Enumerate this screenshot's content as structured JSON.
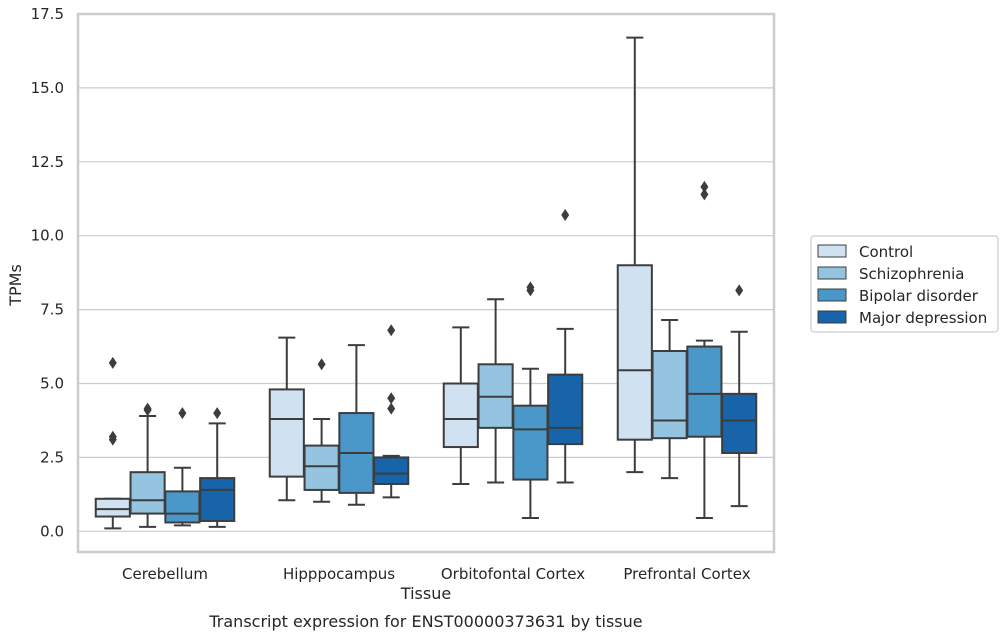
{
  "chart_data": {
    "type": "box",
    "title": "",
    "caption": "Transcript expression for ENST00000373631 by tissue",
    "xlabel": "Tissue",
    "ylabel": "TPMs",
    "ylim": [
      -0.7,
      17.5
    ],
    "yticks": [
      "0.0",
      "2.5",
      "5.0",
      "7.5",
      "10.0",
      "12.5",
      "15.0",
      "17.5"
    ],
    "ytick_values": [
      0,
      2.5,
      5,
      7.5,
      10,
      12.5,
      15,
      17.5
    ],
    "grid": "horizontal",
    "legend_position": "right",
    "categories": [
      "Cerebellum",
      "Hipppocampus",
      "Orbitofontal Cortex",
      "Prefrontal Cortex"
    ],
    "series": [
      {
        "name": "Control",
        "color": "#d0e1f2",
        "boxes": [
          {
            "whislo": 0.1,
            "q1": 0.5,
            "med": 0.75,
            "q3": 1.1,
            "whishi": 1.1,
            "fliers": [
              3.1,
              3.2,
              5.7
            ]
          },
          {
            "whislo": 1.05,
            "q1": 1.85,
            "med": 3.8,
            "q3": 4.8,
            "whishi": 6.55,
            "fliers": []
          },
          {
            "whislo": 1.6,
            "q1": 2.85,
            "med": 3.8,
            "q3": 5.0,
            "whishi": 6.9,
            "fliers": []
          },
          {
            "whislo": 2.0,
            "q1": 3.1,
            "med": 5.45,
            "q3": 9.0,
            "whishi": 16.7,
            "fliers": []
          }
        ]
      },
      {
        "name": "Schizophrenia",
        "color": "#94c4df",
        "boxes": [
          {
            "whislo": 0.15,
            "q1": 0.6,
            "med": 1.05,
            "q3": 2.0,
            "whishi": 3.9,
            "fliers": [
              4.1,
              4.15
            ]
          },
          {
            "whislo": 1.0,
            "q1": 1.4,
            "med": 2.2,
            "q3": 2.9,
            "whishi": 3.8,
            "fliers": [
              5.65
            ]
          },
          {
            "whislo": 1.65,
            "q1": 3.5,
            "med": 4.55,
            "q3": 5.65,
            "whishi": 7.85,
            "fliers": []
          },
          {
            "whislo": 1.8,
            "q1": 3.15,
            "med": 3.75,
            "q3": 6.1,
            "whishi": 7.15,
            "fliers": []
          }
        ]
      },
      {
        "name": "Bipolar disorder",
        "color": "#4a98c9",
        "boxes": [
          {
            "whislo": 0.2,
            "q1": 0.3,
            "med": 0.6,
            "q3": 1.35,
            "whishi": 2.15,
            "fliers": [
              4.0
            ]
          },
          {
            "whislo": 0.9,
            "q1": 1.3,
            "med": 2.65,
            "q3": 4.0,
            "whishi": 6.3,
            "fliers": []
          },
          {
            "whislo": 0.45,
            "q1": 1.75,
            "med": 3.45,
            "q3": 4.25,
            "whishi": 5.5,
            "fliers": [
              8.15,
              8.25
            ]
          },
          {
            "whislo": 0.45,
            "q1": 3.2,
            "med": 4.65,
            "q3": 6.25,
            "whishi": 6.45,
            "fliers": [
              11.4,
              11.65
            ]
          }
        ]
      },
      {
        "name": "Major depression",
        "color": "#1764ab",
        "boxes": [
          {
            "whislo": 0.15,
            "q1": 0.35,
            "med": 1.4,
            "q3": 1.8,
            "whishi": 3.65,
            "fliers": [
              4.0
            ]
          },
          {
            "whislo": 1.15,
            "q1": 1.6,
            "med": 1.95,
            "q3": 2.5,
            "whishi": 2.55,
            "fliers": [
              4.15,
              4.5,
              6.8
            ]
          },
          {
            "whislo": 1.65,
            "q1": 2.95,
            "med": 3.5,
            "q3": 5.3,
            "whishi": 6.85,
            "fliers": [
              10.7
            ]
          },
          {
            "whislo": 0.85,
            "q1": 2.65,
            "med": 3.75,
            "q3": 4.65,
            "whishi": 6.75,
            "fliers": [
              8.15
            ]
          }
        ]
      }
    ]
  }
}
